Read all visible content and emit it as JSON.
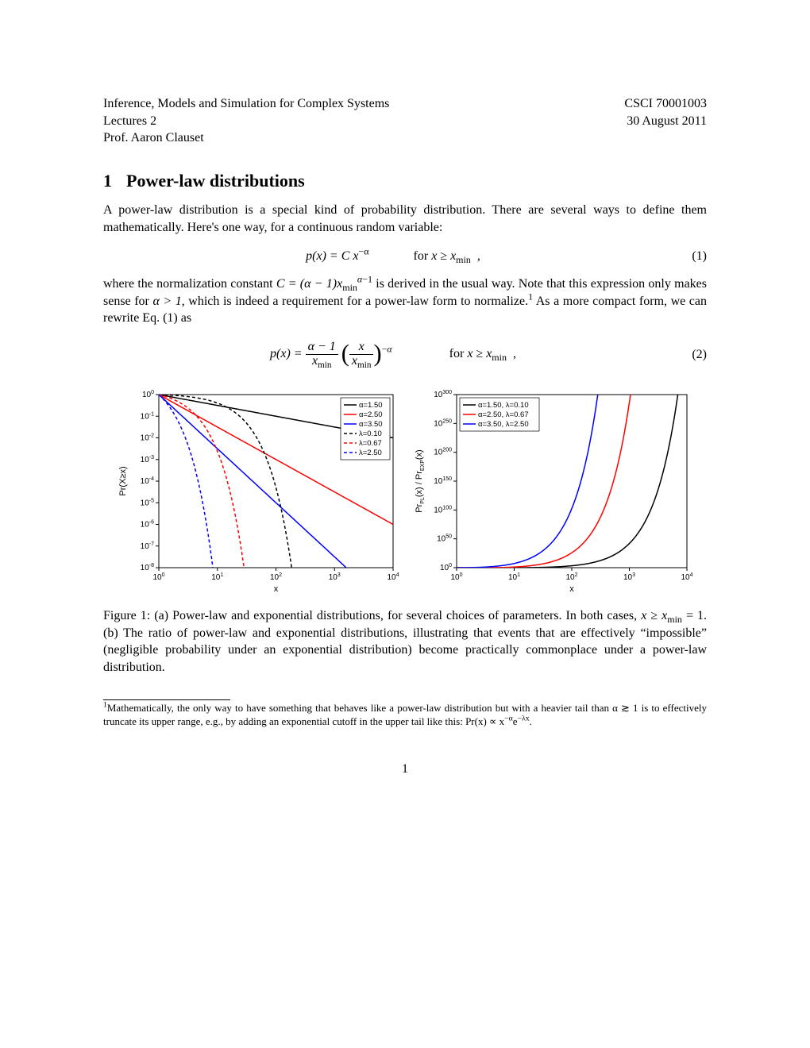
{
  "header": {
    "course_title": "Inference, Models and Simulation for Complex Systems",
    "course_code": "CSCI 70001003",
    "lecture_label": "Lectures 2",
    "date": "30 August 2011",
    "prof": "Prof. Aaron Clauset"
  },
  "section": {
    "number": "1",
    "title": "Power-law distributions"
  },
  "para1": "A power-law distribution is a special kind of probability distribution. There are several ways to define them mathematically. Here's one way, for a continuous random variable:",
  "eq1": {
    "lhs": "p(x) = C x",
    "exp": "−α",
    "cond_prefix": "for ",
    "cond": "x ≥ x",
    "cond_sub": "min",
    "num": "(1)"
  },
  "para2_a": "where the normalization constant ",
  "para2_c": " is derived in the usual way. Note that this expression only makes sense for ",
  "para2_d": "α > 1",
  "para2_e": ", which is indeed a requirement for a power-law form to normalize.",
  "para2_f": " As a more compact form, we can rewrite Eq. (1) as",
  "eq2": {
    "cond_prefix": "for ",
    "cond": "x ≥ x",
    "cond_sub": "min",
    "num": "(2)"
  },
  "chart_left": {
    "type": "line-loglog",
    "xlim": [
      1,
      10000
    ],
    "ylim": [
      1e-08,
      1
    ],
    "xlabel": "x",
    "ylabel": "Pr(X≥x)",
    "xticks": [
      1,
      10,
      100,
      1000,
      10000
    ],
    "xtick_labels": [
      "10⁰",
      "10¹",
      "10²",
      "10³",
      "10⁴"
    ],
    "yticks": [
      1e-08,
      1e-07,
      1e-06,
      1e-05,
      0.0001,
      0.001,
      0.01,
      0.1,
      1
    ],
    "ytick_labels": [
      "10⁻⁸",
      "10⁻⁷",
      "10⁻⁶",
      "10⁻⁵",
      "10⁻⁴",
      "10⁻³",
      "10⁻²",
      "10⁻¹",
      "10⁰"
    ],
    "series": [
      {
        "label": "α=1.50",
        "color": "#000000",
        "dash": "solid",
        "alpha": 1.5,
        "type": "power"
      },
      {
        "label": "α=2.50",
        "color": "#ff0000",
        "dash": "solid",
        "alpha": 2.5,
        "type": "power"
      },
      {
        "label": "α=3.50",
        "color": "#0000ff",
        "dash": "solid",
        "alpha": 3.5,
        "type": "power"
      },
      {
        "label": "λ=0.10",
        "color": "#000000",
        "dash": "4,3",
        "lambda": 0.1,
        "type": "exp"
      },
      {
        "label": "λ=0.67",
        "color": "#ff0000",
        "dash": "4,3",
        "lambda": 0.67,
        "type": "exp"
      },
      {
        "label": "λ=2.50",
        "color": "#0000ff",
        "dash": "4,3",
        "lambda": 2.5,
        "type": "exp"
      }
    ],
    "legend_pos": "top-right",
    "line_width": 1.5,
    "background_color": "#ffffff",
    "axis_color": "#000000"
  },
  "chart_right": {
    "type": "line-loglog",
    "xlim": [
      1,
      10000
    ],
    "ylim": [
      1,
      1e+300
    ],
    "xlabel": "x",
    "ylabel": "Pr_PL(x) / Pr_EXP(x)",
    "xticks": [
      1,
      10,
      100,
      1000,
      10000
    ],
    "xtick_labels": [
      "10⁰",
      "10¹",
      "10²",
      "10³",
      "10⁴"
    ],
    "yticks": [
      1,
      1e+50,
      1e+100,
      1e+150,
      1e+200,
      1e+250,
      1e+300
    ],
    "ytick_labels": [
      "10⁰",
      "10⁵⁰",
      "10¹⁰⁰",
      "10¹⁵⁰",
      "10²⁰⁰",
      "10²⁵⁰",
      "10³⁰⁰"
    ],
    "series": [
      {
        "label": "α=1.50, λ=0.10",
        "color": "#000000",
        "dash": "solid",
        "alpha": 1.5,
        "lambda": 0.1
      },
      {
        "label": "α=2.50, λ=0.67",
        "color": "#ff0000",
        "dash": "solid",
        "alpha": 2.5,
        "lambda": 0.67
      },
      {
        "label": "α=3.50, λ=2.50",
        "color": "#0000ff",
        "dash": "solid",
        "alpha": 3.5,
        "lambda": 2.5
      }
    ],
    "legend_pos": "top-left",
    "line_width": 1.5,
    "background_color": "#ffffff",
    "axis_color": "#000000"
  },
  "figcaption": "Figure 1: (a) Power-law and exponential distributions, for several choices of parameters. In both cases, x ≥ xmin = 1. (b) The ratio of power-law and exponential distributions, illustrating that events that are effectively “impossible” (negligible probability under an exponential distribution) become practically commonplace under a power-law distribution.",
  "footnote": {
    "marker": "1",
    "text_a": "Mathematically, the only way to have something that behaves like a power-law distribution but with a heavier tail than α ≳ 1 is to effectively truncate its upper range, e.g., by adding an exponential cutoff in the upper tail like this: Pr(x) ∝ x",
    "text_exp1": "−α",
    "text_mid": "e",
    "text_exp2": "−λx",
    "text_end": "."
  },
  "page_number": "1"
}
